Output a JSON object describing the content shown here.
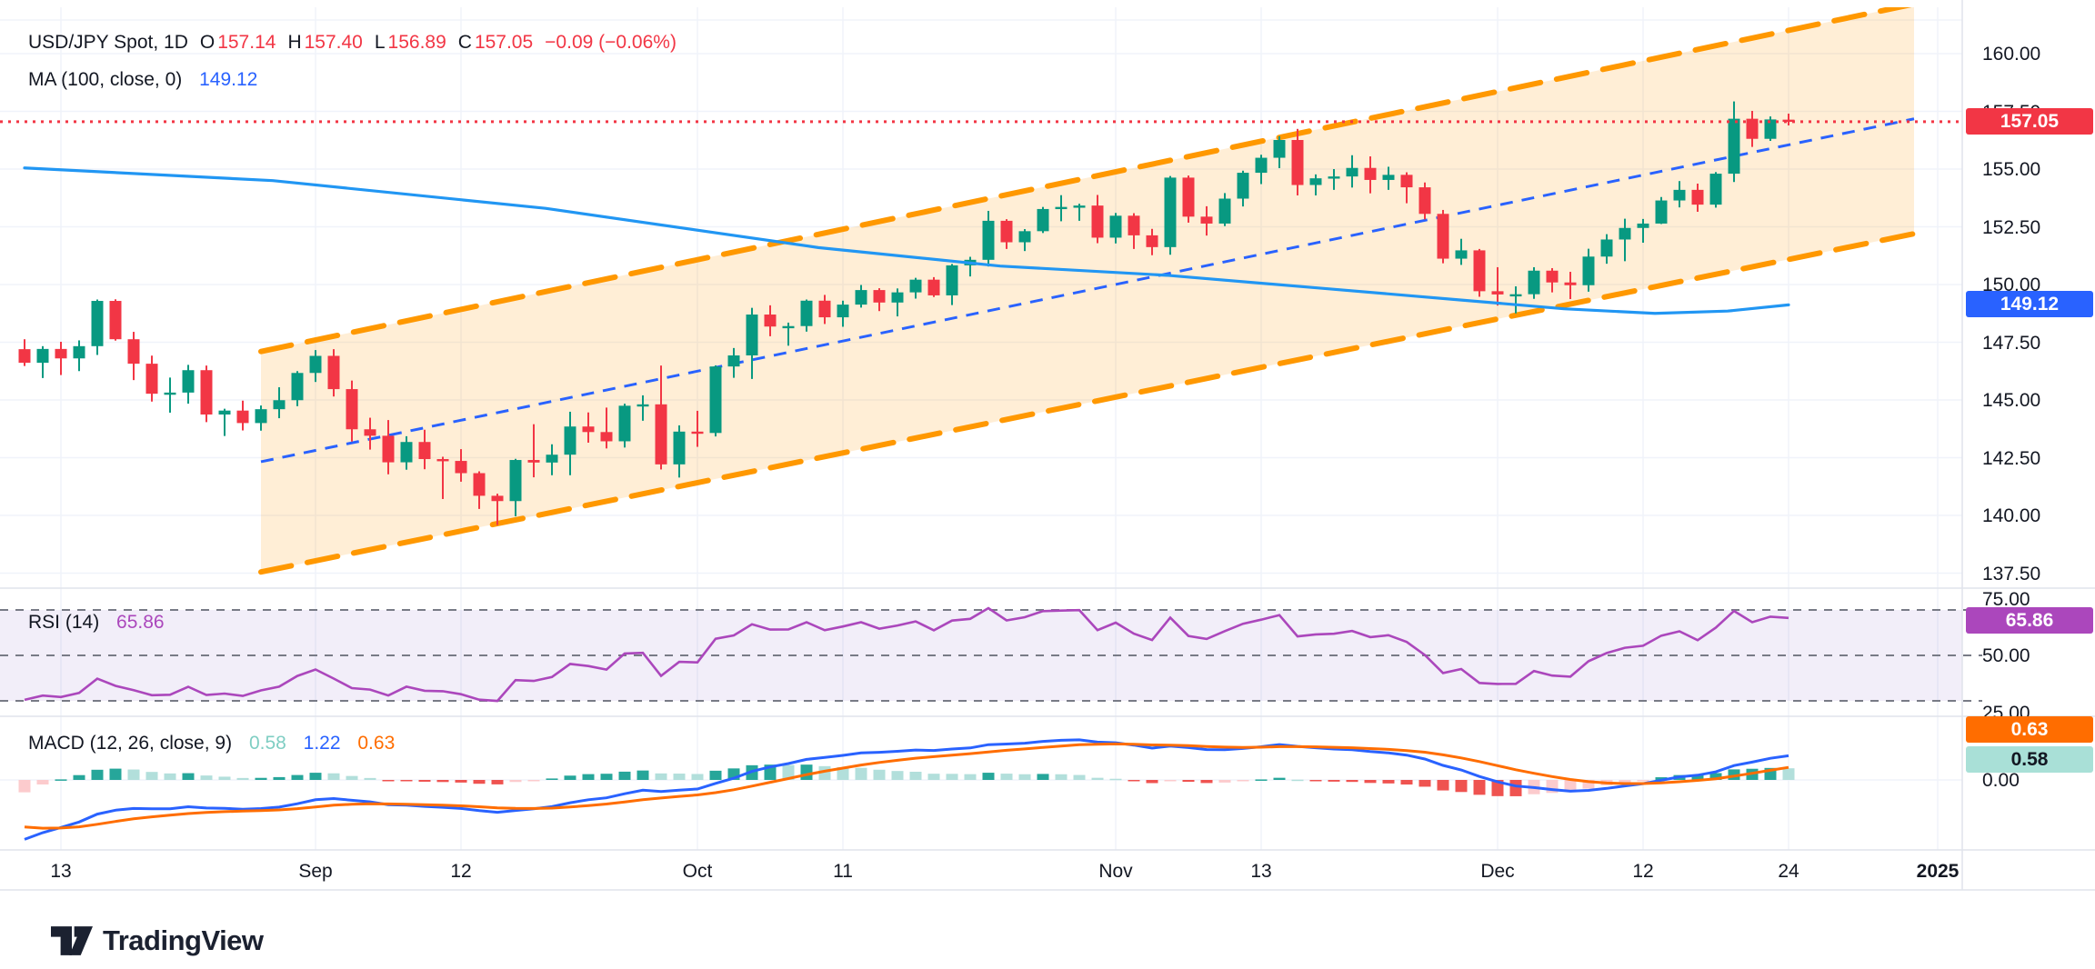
{
  "header": {
    "symbol_line": {
      "title": "USD/JPY Spot, 1D",
      "o_label": "O",
      "o": "157.14",
      "h_label": "H",
      "h": "157.40",
      "l_label": "L",
      "l": "156.89",
      "c_label": "C",
      "c": "157.05",
      "change": "−0.09 (−0.06%)"
    },
    "ma_line": {
      "label": "MA (100, close, 0)",
      "value": "149.12"
    }
  },
  "price_axis": {
    "price_badge": "157.05",
    "ma_badge": "149.12",
    "ticks": [
      {
        "label": "160.00",
        "value": 160.0
      },
      {
        "label": "157.50",
        "value": 157.5
      },
      {
        "label": "155.00",
        "value": 155.0
      },
      {
        "label": "152.50",
        "value": 152.5
      },
      {
        "label": "150.00",
        "value": 150.0
      },
      {
        "label": "147.50",
        "value": 147.5
      },
      {
        "label": "145.00",
        "value": 145.0
      },
      {
        "label": "142.50",
        "value": 142.5
      },
      {
        "label": "140.00",
        "value": 140.0
      },
      {
        "label": "137.50",
        "value": 137.5
      }
    ]
  },
  "time_axis": {
    "ticks": [
      {
        "label": "13",
        "i": 2
      },
      {
        "label": "Sep",
        "i": 16
      },
      {
        "label": "12",
        "i": 24
      },
      {
        "label": "Oct",
        "i": 37
      },
      {
        "label": "11",
        "i": 45
      },
      {
        "label": "Nov",
        "i": 60
      },
      {
        "label": "13",
        "i": 68
      },
      {
        "label": "Dec",
        "i": 81
      },
      {
        "label": "12",
        "i": 89
      },
      {
        "label": "24",
        "i": 97
      },
      {
        "label": "2025",
        "i": 105.2,
        "bold": true
      }
    ]
  },
  "rsi": {
    "legend_label": "RSI (14)",
    "legend_value": "65.86",
    "badge": "65.86",
    "levels": [
      70,
      50,
      30
    ],
    "band": [
      30,
      70
    ],
    "ticks": [
      {
        "label": "75.00",
        "value": 75
      },
      {
        "label": "50.00",
        "value": 50
      },
      {
        "label": "25.00",
        "value": 25
      }
    ]
  },
  "macd": {
    "legend_label": "MACD (12, 26, close, 9)",
    "legend_values": [
      "0.58",
      "1.22",
      "0.63"
    ],
    "badge_signal": "0.63",
    "badge_hist": "0.58",
    "ticks": [
      {
        "label": "0.00",
        "value": 0
      }
    ]
  },
  "logo": {
    "text": "TradingView"
  },
  "colors": {
    "up": "#089981",
    "down": "#F23645",
    "ma": "#2196F3",
    "channel": "#FF9800",
    "channel_fill_opacity": 0.16,
    "channel_mid": "#2962FF",
    "price_line": "#F23645",
    "rsi_line": "#AB47BC",
    "rsi_band_fill": "rgba(126,87,194,0.10)",
    "rsi_level": "#787B86",
    "macd_line": "#2962FF",
    "signal_line": "#FF6D00",
    "hist_pos_strong": "#26A69A",
    "hist_pos_weak": "#B2DFDB",
    "hist_neg_strong": "#EF5350",
    "hist_neg_weak": "#FCCBCD",
    "grid": "#F0F3FA",
    "separator": "#E0E3EB",
    "text": "#131722"
  },
  "chart_data": {
    "type": "candlestick",
    "title": "USD/JPY Spot, 1D",
    "symbol": "USD/JPY Spot",
    "interval": "1D",
    "last_bar": {
      "open": 157.14,
      "high": 157.4,
      "low": 156.89,
      "close": 157.05,
      "change": -0.09,
      "change_pct": -0.06
    },
    "price_axis_range": [
      136.6,
      162.0
    ],
    "price_line_value": 157.05,
    "candles": [
      [
        "Aug 9",
        147.2,
        147.63,
        146.47,
        146.61
      ],
      [
        "Aug 12",
        146.61,
        147.33,
        145.95,
        147.21
      ],
      [
        "Aug 13",
        147.21,
        147.52,
        146.08,
        146.8
      ],
      [
        "Aug 14",
        146.8,
        147.58,
        146.25,
        147.33
      ],
      [
        "Aug 15",
        147.33,
        149.35,
        146.95,
        149.29
      ],
      [
        "Aug 16",
        149.29,
        149.36,
        147.57,
        147.63
      ],
      [
        "Aug 19",
        147.63,
        147.95,
        145.86,
        146.57
      ],
      [
        "Aug 20",
        146.57,
        146.92,
        144.93,
        145.27
      ],
      [
        "Aug 21",
        145.27,
        145.97,
        144.45,
        145.32
      ],
      [
        "Aug 22",
        145.32,
        146.52,
        144.84,
        146.29
      ],
      [
        "Aug 23",
        146.29,
        146.49,
        144.04,
        144.37
      ],
      [
        "Aug 26",
        144.37,
        144.62,
        143.44,
        144.54
      ],
      [
        "Aug 27",
        144.54,
        144.97,
        143.68,
        144.0
      ],
      [
        "Aug 28",
        144.0,
        144.76,
        143.67,
        144.6
      ],
      [
        "Aug 29",
        144.6,
        145.55,
        144.21,
        144.99
      ],
      [
        "Aug 30",
        144.99,
        146.25,
        144.73,
        146.17
      ],
      [
        "Sep 2",
        146.17,
        147.16,
        145.78,
        146.91
      ],
      [
        "Sep 3",
        146.91,
        147.2,
        145.15,
        145.47
      ],
      [
        "Sep 4",
        145.47,
        145.84,
        143.2,
        143.73
      ],
      [
        "Sep 5",
        143.73,
        144.23,
        142.85,
        143.45
      ],
      [
        "Sep 6",
        143.45,
        144.13,
        141.78,
        142.3
      ],
      [
        "Sep 9",
        142.3,
        143.43,
        141.98,
        143.18
      ],
      [
        "Sep 10",
        143.18,
        143.71,
        142.0,
        142.44
      ],
      [
        "Sep 11",
        142.44,
        142.54,
        140.71,
        142.36
      ],
      [
        "Sep 12",
        142.36,
        142.87,
        141.46,
        141.83
      ],
      [
        "Sep 13",
        141.83,
        141.91,
        140.28,
        140.85
      ],
      [
        "Sep 16",
        140.85,
        140.94,
        139.58,
        140.62
      ],
      [
        "Sep 17",
        140.62,
        142.45,
        139.96,
        142.4
      ],
      [
        "Sep 18",
        142.4,
        143.95,
        141.65,
        142.29
      ],
      [
        "Sep 19",
        142.29,
        143.08,
        141.74,
        142.63
      ],
      [
        "Sep 20",
        142.63,
        144.49,
        141.74,
        143.85
      ],
      [
        "Sep 23",
        143.85,
        144.46,
        143.15,
        143.61
      ],
      [
        "Sep 24",
        143.61,
        144.67,
        142.9,
        143.21
      ],
      [
        "Sep 25",
        143.21,
        144.84,
        142.94,
        144.75
      ],
      [
        "Sep 26",
        144.75,
        145.2,
        144.1,
        144.81
      ],
      [
        "Sep 27",
        144.81,
        146.49,
        141.99,
        142.21
      ],
      [
        "Sep 30",
        142.21,
        143.9,
        141.64,
        143.63
      ],
      [
        "Oct 1",
        143.63,
        144.53,
        142.97,
        143.57
      ],
      [
        "Oct 2",
        143.57,
        146.5,
        143.42,
        146.45
      ],
      [
        "Oct 3",
        146.45,
        147.25,
        145.96,
        146.93
      ],
      [
        "Oct 4",
        146.93,
        148.99,
        145.91,
        148.7
      ],
      [
        "Oct 7",
        148.7,
        149.1,
        147.76,
        148.18
      ],
      [
        "Oct 8",
        148.18,
        148.35,
        147.35,
        148.2
      ],
      [
        "Oct 9",
        148.2,
        149.35,
        147.96,
        149.3
      ],
      [
        "Oct 10",
        149.3,
        149.55,
        148.29,
        148.58
      ],
      [
        "Oct 11",
        148.58,
        149.3,
        148.17,
        149.13
      ],
      [
        "Oct 14",
        149.13,
        149.98,
        149.0,
        149.76
      ],
      [
        "Oct 15",
        149.76,
        149.84,
        148.85,
        149.22
      ],
      [
        "Oct 16",
        149.22,
        149.83,
        148.62,
        149.66
      ],
      [
        "Oct 17",
        149.66,
        150.29,
        149.39,
        150.21
      ],
      [
        "Oct 18",
        150.21,
        150.32,
        149.46,
        149.53
      ],
      [
        "Oct 21",
        149.53,
        150.89,
        149.11,
        150.83
      ],
      [
        "Oct 22",
        150.83,
        151.2,
        150.35,
        151.07
      ],
      [
        "Oct 23",
        151.07,
        153.19,
        150.78,
        152.76
      ],
      [
        "Oct 24",
        152.76,
        152.83,
        151.54,
        151.83
      ],
      [
        "Oct 25",
        151.83,
        152.4,
        151.45,
        152.31
      ],
      [
        "Oct 28",
        152.31,
        153.36,
        152.23,
        153.27
      ],
      [
        "Oct 29",
        153.27,
        153.87,
        152.74,
        153.36
      ],
      [
        "Oct 30",
        153.36,
        153.5,
        152.76,
        153.42
      ],
      [
        "Oct 31",
        153.42,
        153.88,
        151.79,
        152.03
      ],
      [
        "Nov 1",
        152.03,
        153.1,
        151.78,
        152.98
      ],
      [
        "Nov 4",
        152.98,
        153.09,
        151.54,
        152.13
      ],
      [
        "Nov 5",
        152.13,
        152.41,
        151.27,
        151.62
      ],
      [
        "Nov 6",
        151.62,
        154.7,
        151.29,
        154.63
      ],
      [
        "Nov 7",
        154.63,
        154.72,
        152.68,
        152.94
      ],
      [
        "Nov 8",
        152.94,
        153.39,
        152.12,
        152.64
      ],
      [
        "Nov 11",
        152.64,
        153.96,
        152.53,
        153.72
      ],
      [
        "Nov 12",
        153.72,
        154.93,
        153.38,
        154.84
      ],
      [
        "Nov 13",
        154.84,
        155.62,
        154.35,
        155.49
      ],
      [
        "Nov 14",
        155.49,
        156.42,
        155.04,
        156.26
      ],
      [
        "Nov 15",
        156.26,
        156.74,
        153.86,
        154.31
      ],
      [
        "Nov 18",
        154.31,
        154.77,
        153.86,
        154.6
      ],
      [
        "Nov 19",
        154.6,
        155.0,
        154.1,
        154.68
      ],
      [
        "Nov 20",
        154.68,
        155.6,
        154.2,
        155.05
      ],
      [
        "Nov 21",
        155.05,
        155.55,
        153.95,
        154.53
      ],
      [
        "Nov 22",
        154.53,
        155.1,
        154.1,
        154.75
      ],
      [
        "Nov 25",
        154.75,
        154.86,
        153.52,
        154.21
      ],
      [
        "Nov 26",
        154.21,
        154.42,
        152.82,
        153.06
      ],
      [
        "Nov 27",
        153.06,
        153.23,
        150.92,
        151.12
      ],
      [
        "Nov 28",
        151.12,
        151.98,
        150.85,
        151.48
      ],
      [
        "Nov 29",
        151.48,
        151.54,
        149.47,
        149.71
      ],
      [
        "Dec 2",
        149.71,
        150.75,
        149.09,
        149.57
      ],
      [
        "Dec 3",
        149.57,
        149.92,
        148.75,
        149.58
      ],
      [
        "Dec 4",
        149.58,
        150.75,
        149.38,
        150.6
      ],
      [
        "Dec 5",
        150.6,
        150.71,
        149.66,
        150.09
      ],
      [
        "Dec 6",
        150.09,
        150.55,
        149.37,
        149.97
      ],
      [
        "Dec 9",
        149.97,
        151.55,
        149.69,
        151.21
      ],
      [
        "Dec 10",
        151.21,
        152.18,
        150.9,
        151.95
      ],
      [
        "Dec 11",
        151.95,
        152.85,
        151.01,
        152.45
      ],
      [
        "Dec 12",
        152.45,
        152.84,
        151.81,
        152.64
      ],
      [
        "Dec 13",
        152.64,
        153.79,
        152.62,
        153.64
      ],
      [
        "Dec 16",
        153.64,
        154.48,
        153.34,
        154.1
      ],
      [
        "Dec 17",
        154.1,
        154.37,
        153.15,
        153.46
      ],
      [
        "Dec 18",
        153.46,
        154.87,
        153.33,
        154.8
      ],
      [
        "Dec 19",
        154.8,
        157.93,
        154.44,
        157.18
      ],
      [
        "Dec 20",
        157.18,
        157.52,
        155.96,
        156.31
      ],
      [
        "Dec 23",
        156.31,
        157.28,
        156.22,
        157.15
      ],
      [
        "Dec 24",
        157.14,
        157.4,
        156.89,
        157.05
      ]
    ],
    "ma100": {
      "period": 100,
      "current": 149.12,
      "points": [
        [
          0,
          155.05
        ],
        [
          13.65,
          154.5
        ],
        [
          28.65,
          153.3
        ],
        [
          43.65,
          151.6
        ],
        [
          53.65,
          150.8
        ],
        [
          62.8,
          150.4
        ],
        [
          71.15,
          149.85
        ],
        [
          78.65,
          149.35
        ],
        [
          84.65,
          148.95
        ],
        [
          89.65,
          148.75
        ],
        [
          93.65,
          148.85
        ],
        [
          97,
          149.12
        ]
      ]
    },
    "channel": {
      "i1": 13.0,
      "i2": 103.9,
      "top_start": 147.1,
      "top_end": 162.15,
      "bottom_start": 137.55,
      "bottom_end": 152.2
    },
    "indicators": {
      "rsi": {
        "period": 14,
        "seed_avg_gain": 0.55,
        "seed_avg_loss": 1.2,
        "seed_prev_close": 147.35,
        "current": 65.86
      },
      "macd": {
        "fast": 12,
        "slow": 26,
        "signal": 9,
        "seed_ema_fast": 145.6,
        "seed_ema_slow": 148.9,
        "seed_signal": -2.2,
        "seed_prev_hist": -0.9,
        "current_macd": 1.22,
        "current_signal": 0.63,
        "current_hist": 0.58
      }
    }
  }
}
